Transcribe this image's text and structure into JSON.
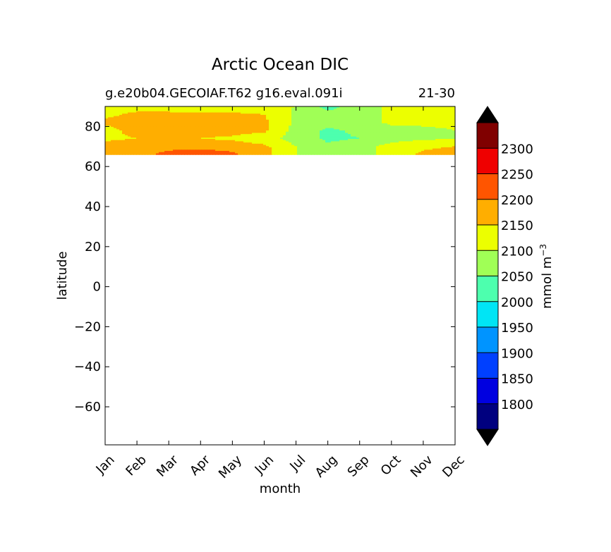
{
  "chart_data": {
    "type": "heatmap",
    "title": "Arctic Ocean DIC",
    "subtitle_left": "g.e20b04.GECOIAF.T62 g16.eval.091i",
    "subtitle_right": "21-30",
    "xlabel": "month",
    "ylabel": "latitude",
    "x_ticks": [
      "Jan",
      "Feb",
      "Mar",
      "Apr",
      "May",
      "Jun",
      "Jul",
      "Aug",
      "Sep",
      "Oct",
      "Nov",
      "Dec"
    ],
    "y_ticks": [
      80,
      60,
      40,
      20,
      0,
      -20,
      -40,
      -60
    ],
    "y_tick_labels": [
      "80",
      "60",
      "40",
      "20",
      "0",
      "−20",
      "−40",
      "−60"
    ],
    "ylim": [
      -79,
      90
    ],
    "xlim": [
      0,
      11
    ],
    "data_lat_range": [
      66,
      90
    ],
    "grid": false,
    "colorbar": {
      "label": "mmol m",
      "label_superscript": "−3",
      "extend": "both",
      "levels": [
        1750,
        1800,
        1850,
        1900,
        1950,
        2000,
        2050,
        2100,
        2150,
        2200,
        2250,
        2300,
        2350
      ],
      "tick_values": [
        1800,
        1850,
        1900,
        1950,
        2000,
        2050,
        2100,
        2150,
        2200,
        2250,
        2300
      ],
      "tick_labels": [
        "1800",
        "1850",
        "1900",
        "1950",
        "2000",
        "2050",
        "2100",
        "2150",
        "2200",
        "2250",
        "2300"
      ],
      "colors": [
        "#00007f",
        "#0000e0",
        "#0040ff",
        "#0094ff",
        "#00e5f5",
        "#4dffae",
        "#a0ff56",
        "#ecff00",
        "#ffae00",
        "#ff5500",
        "#ef0000",
        "#800000"
      ],
      "under_color": "#000000",
      "over_color": "#000000"
    },
    "latitudes": [
      90,
      86,
      82,
      78,
      74,
      70,
      66
    ],
    "grid_values": [
      [
        2120,
        2130,
        2130,
        2120,
        2120,
        2110,
        2100,
        2030,
        2080,
        2110,
        2110,
        2110
      ],
      [
        2140,
        2160,
        2160,
        2160,
        2160,
        2150,
        2090,
        2070,
        2080,
        2110,
        2120,
        2110
      ],
      [
        2160,
        2170,
        2170,
        2170,
        2170,
        2160,
        2090,
        2070,
        2080,
        2110,
        2110,
        2110
      ],
      [
        2130,
        2170,
        2170,
        2170,
        2170,
        2160,
        2080,
        2040,
        2060,
        2080,
        2090,
        2100
      ],
      [
        2140,
        2150,
        2150,
        2150,
        2140,
        2120,
        2080,
        2040,
        2050,
        2080,
        2090,
        2100
      ],
      [
        2170,
        2180,
        2190,
        2190,
        2180,
        2160,
        2100,
        2060,
        2080,
        2120,
        2140,
        2150
      ],
      [
        2180,
        2190,
        2210,
        2220,
        2210,
        2170,
        2100,
        2060,
        2080,
        2120,
        2160,
        2180
      ]
    ]
  }
}
